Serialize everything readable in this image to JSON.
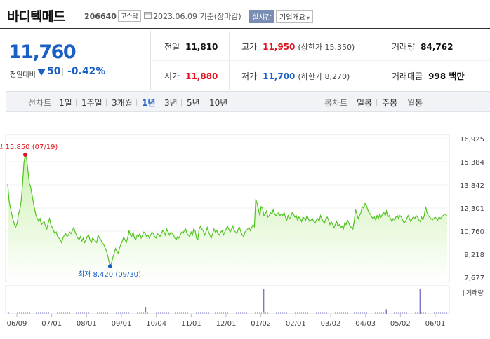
{
  "header": {
    "stock_name": "바디텍메드",
    "stock_code": "206640",
    "market": "코스닥",
    "base_date": "2023.06.09 기준(장마감)",
    "realtime_label": "실시간",
    "company_button": "기업개요"
  },
  "price": {
    "current": "11,760",
    "change_label": "전일대비",
    "change_value": "50",
    "change_percent": "-0.42%",
    "direction": "down"
  },
  "stats": {
    "prev_label": "전일",
    "prev_value": "11,810",
    "high_label": "고가",
    "high_value": "11,950",
    "upper_limit": "(상한가 15,350)",
    "volume_label": "거래량",
    "volume_value": "84,762",
    "open_label": "시가",
    "open_value": "11,880",
    "low_label": "저가",
    "low_value": "11,700",
    "lower_limit": "(하한가 8,270)",
    "amount_label": "거래대금",
    "amount_value": "998 백만"
  },
  "period_bar": {
    "line_chart_label": "선차트",
    "line_periods": [
      "1일",
      "1주일",
      "3개월",
      "1년",
      "3년",
      "5년",
      "10년"
    ],
    "active_period": "1년",
    "candle_chart_label": "봉차트",
    "candle_periods": [
      "일봉",
      "주봉",
      "월봉"
    ]
  },
  "colors": {
    "price_down": "#1a5fc4",
    "price_up": "#e0131e",
    "line": "#4fc41f",
    "fill_top": "#cdf1b1",
    "volume": "#7a7ac8"
  },
  "chart_data": {
    "type": "area",
    "y_ticks": [
      "16,925",
      "15,384",
      "13,842",
      "12,301",
      "10,760",
      "9,218",
      "7,677"
    ],
    "ylim": [
      7677,
      16925
    ],
    "x_ticks": [
      "06/09",
      "07/01",
      "08/01",
      "09/01",
      "10/04",
      "11/01",
      "12/01",
      "01/02",
      "02/01",
      "03/02",
      "04/03",
      "05/02",
      "06/01"
    ],
    "annotations": {
      "high_label": "최고",
      "high_text": "15,850 (07/19)",
      "high_value": 15850,
      "high_index": 13,
      "low_label": "최저",
      "low_text": "8,420 (09/30)",
      "low_value": 8420,
      "low_index": 76
    },
    "volume_label": "거래량",
    "values": [
      13900,
      12800,
      12300,
      11900,
      11500,
      11200,
      11050,
      11300,
      11900,
      12200,
      12800,
      13900,
      15300,
      15850,
      15600,
      14800,
      14000,
      13700,
      13200,
      12700,
      12200,
      11800,
      11600,
      11400,
      11600,
      11200,
      11300,
      11400,
      11100,
      10900,
      11300,
      11600,
      11200,
      11000,
      10800,
      10600,
      10700,
      10400,
      10300,
      10200,
      10000,
      10300,
      10500,
      10600,
      10400,
      10500,
      10700,
      10600,
      10800,
      11000,
      10700,
      10500,
      10300,
      10200,
      10400,
      10100,
      10300,
      10000,
      10200,
      10400,
      10500,
      10200,
      10000,
      10300,
      10200,
      10100,
      10000,
      10500,
      10300,
      10200,
      10000,
      9900,
      9700,
      9500,
      9200,
      8800,
      8420,
      8650,
      9000,
      9300,
      9600,
      9400,
      9300,
      9650,
      9900,
      10100,
      10350,
      10200,
      10000,
      10300,
      10800,
      10500,
      10400,
      10700,
      10300,
      10200,
      10500,
      10400,
      10600,
      10300,
      10500,
      10700,
      10600,
      10400,
      10500,
      10300,
      10500,
      10700,
      10600,
      10400,
      10300,
      10600,
      10500,
      10400,
      10600,
      10800,
      10700,
      10500,
      10900,
      10700,
      10500,
      10700,
      10600,
      10500,
      10300,
      10200,
      10400,
      10300,
      10500,
      10700,
      10600,
      10800,
      10900,
      10600,
      10500,
      10400,
      10700,
      10500,
      10900,
      10800,
      10300,
      10200,
      10900,
      11100,
      10900,
      10800,
      10500,
      10700,
      11000,
      10700,
      10500,
      10300,
      10600,
      10900,
      10700,
      10800,
      10600,
      10500,
      10700,
      10800,
      10500,
      10700,
      10900,
      11100,
      10900,
      10700,
      10900,
      11100,
      10800,
      10700,
      10600,
      10900,
      11000,
      10700,
      10500,
      10400,
      10700,
      10800,
      10900,
      11000,
      10800,
      11000,
      11200,
      11050,
      12900,
      12600,
      12200,
      11800,
      12400,
      12300,
      11800,
      11900,
      12100,
      11700,
      11800,
      12000,
      11900,
      12200,
      11900,
      11800,
      11900,
      12000,
      11800,
      11900,
      11800,
      12000,
      11700,
      11500,
      11800,
      11600,
      11700,
      12000,
      11900,
      11700,
      11800,
      11500,
      11700,
      11600,
      11400,
      11700,
      11600,
      11500,
      11800,
      11600,
      11400,
      11500,
      11600,
      11400,
      11300,
      11500,
      11600,
      11400,
      11800,
      11600,
      11400,
      11300,
      11600,
      11700,
      11500,
      11200,
      11400,
      11200,
      11000,
      11200,
      11400,
      11100,
      11200,
      11000,
      11100,
      10900,
      11300,
      11200,
      11500,
      11300,
      11100,
      11000,
      10900,
      11400,
      12200,
      11900,
      11600,
      11800,
      12000,
      12400,
      12300,
      12600,
      12500,
      12200,
      12000,
      11900,
      11700,
      11600,
      11700,
      11500,
      11800,
      11600,
      11900,
      11700,
      11900,
      12000,
      11800,
      12100,
      11700,
      11800,
      11600,
      11400,
      11600,
      11500,
      11700,
      11800,
      11600,
      11800,
      11700,
      11500,
      11300,
      11400,
      11600,
      11800,
      11600,
      11400,
      11600,
      11700,
      11600,
      11800,
      11700,
      11500,
      11400,
      11700,
      11500,
      11800,
      12400,
      12000,
      11800,
      11700,
      11600,
      11500,
      11600,
      11700,
      11600,
      11500,
      11700,
      11600,
      11700,
      11800,
      11900,
      11850,
      11760
    ],
    "volume_spikes": [
      {
        "date_tick": "10/04",
        "offset_days": -10,
        "relative": 0.25
      },
      {
        "date_tick": "01/02",
        "offset_days": 2,
        "relative": 1.0
      },
      {
        "date_tick": "04/03",
        "offset_days": 18,
        "relative": 0.18
      },
      {
        "date_tick": "06/01",
        "offset_days": -14,
        "relative": 1.0
      }
    ]
  }
}
